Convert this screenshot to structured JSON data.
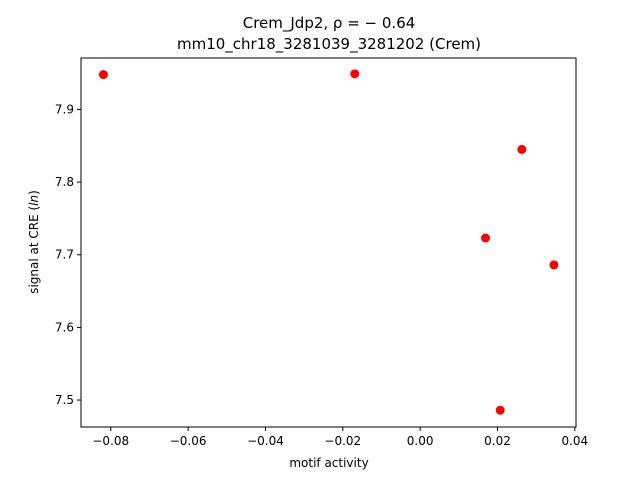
{
  "chart_data": {
    "type": "scatter",
    "title_line1": "Crem_Jdp2, ρ = − 0.64",
    "title_line2": "mm10_chr18_3281039_3281202 (Crem)",
    "xlabel": "motif activity",
    "ylabel_prefix": "signal at CRE (",
    "ylabel_italic": "ln",
    "ylabel_suffix": ")",
    "xlim": [
      -0.0877,
      0.0403
    ],
    "ylim": [
      7.4629,
      7.9708
    ],
    "xticks": [
      -0.08,
      -0.06,
      -0.04,
      -0.02,
      0.0,
      0.02,
      0.04
    ],
    "xtick_labels": [
      "−0.08",
      "−0.06",
      "−0.04",
      "−0.02",
      "0.00",
      "0.02",
      "0.04"
    ],
    "yticks": [
      7.5,
      7.6,
      7.7,
      7.8,
      7.9
    ],
    "ytick_labels": [
      "7.5",
      "7.6",
      "7.7",
      "7.8",
      "7.9"
    ],
    "grid": false,
    "marker_color": "#ff0000",
    "points": [
      {
        "x": -0.0819,
        "y": 7.948
      },
      {
        "x": -0.0169,
        "y": 7.949
      },
      {
        "x": 0.0263,
        "y": 7.845
      },
      {
        "x": 0.0169,
        "y": 7.723
      },
      {
        "x": 0.0346,
        "y": 7.686
      },
      {
        "x": 0.0207,
        "y": 7.486
      }
    ]
  }
}
